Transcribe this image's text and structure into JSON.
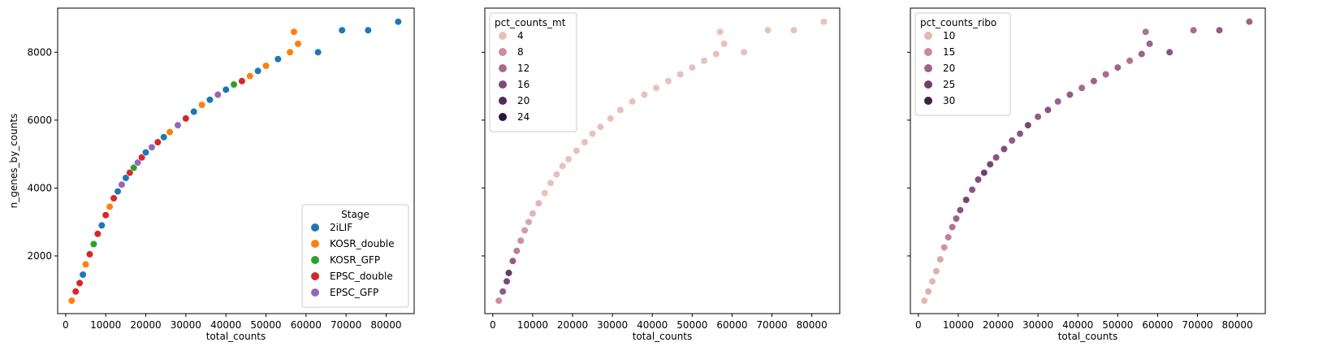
{
  "chart_data": [
    {
      "type": "scatter",
      "xlabel": "total_counts",
      "ylabel": "n_genes_by_counts",
      "xlim": [
        -2000,
        87000
      ],
      "ylim": [
        300,
        9300
      ],
      "xticks": [
        0,
        10000,
        20000,
        30000,
        40000,
        50000,
        60000,
        70000,
        80000
      ],
      "yticks": [
        2000,
        4000,
        6000,
        8000
      ],
      "hue": "Stage",
      "legend": {
        "title": "Stage",
        "placement": "lower right",
        "entries": [
          {
            "label": "2iLIF",
            "color": "#1f77b4"
          },
          {
            "label": "KOSR_double",
            "color": "#ff7f0e"
          },
          {
            "label": "KOSR_GFP",
            "color": "#2ca02c"
          },
          {
            "label": "EPSC_double",
            "color": "#d62728"
          },
          {
            "label": "EPSC_GFP",
            "color": "#9467bd"
          }
        ]
      },
      "points": [
        {
          "x": 1500,
          "y": 680,
          "c": "KOSR_double"
        },
        {
          "x": 2500,
          "y": 950,
          "c": "EPSC_double"
        },
        {
          "x": 3500,
          "y": 1200,
          "c": "EPSC_double"
        },
        {
          "x": 4300,
          "y": 1450,
          "c": "2iLIF"
        },
        {
          "x": 5000,
          "y": 1750,
          "c": "KOSR_double"
        },
        {
          "x": 6000,
          "y": 2050,
          "c": "EPSC_double"
        },
        {
          "x": 7000,
          "y": 2350,
          "c": "KOSR_GFP"
        },
        {
          "x": 8000,
          "y": 2650,
          "c": "EPSC_double"
        },
        {
          "x": 9000,
          "y": 2900,
          "c": "2iLIF"
        },
        {
          "x": 10000,
          "y": 3200,
          "c": "EPSC_double"
        },
        {
          "x": 11000,
          "y": 3450,
          "c": "KOSR_double"
        },
        {
          "x": 12000,
          "y": 3700,
          "c": "EPSC_double"
        },
        {
          "x": 13000,
          "y": 3900,
          "c": "2iLIF"
        },
        {
          "x": 14000,
          "y": 4100,
          "c": "EPSC_GFP"
        },
        {
          "x": 15000,
          "y": 4300,
          "c": "2iLIF"
        },
        {
          "x": 16000,
          "y": 4450,
          "c": "EPSC_double"
        },
        {
          "x": 17000,
          "y": 4600,
          "c": "KOSR_GFP"
        },
        {
          "x": 18000,
          "y": 4750,
          "c": "EPSC_GFP"
        },
        {
          "x": 19000,
          "y": 4900,
          "c": "EPSC_double"
        },
        {
          "x": 20000,
          "y": 5050,
          "c": "2iLIF"
        },
        {
          "x": 21500,
          "y": 5200,
          "c": "EPSC_GFP"
        },
        {
          "x": 23000,
          "y": 5350,
          "c": "EPSC_double"
        },
        {
          "x": 24500,
          "y": 5500,
          "c": "2iLIF"
        },
        {
          "x": 26000,
          "y": 5650,
          "c": "KOSR_double"
        },
        {
          "x": 28000,
          "y": 5850,
          "c": "EPSC_GFP"
        },
        {
          "x": 30000,
          "y": 6050,
          "c": "EPSC_double"
        },
        {
          "x": 32000,
          "y": 6250,
          "c": "2iLIF"
        },
        {
          "x": 34000,
          "y": 6450,
          "c": "KOSR_double"
        },
        {
          "x": 36000,
          "y": 6600,
          "c": "2iLIF"
        },
        {
          "x": 38000,
          "y": 6750,
          "c": "EPSC_GFP"
        },
        {
          "x": 40000,
          "y": 6900,
          "c": "2iLIF"
        },
        {
          "x": 42000,
          "y": 7050,
          "c": "KOSR_GFP"
        },
        {
          "x": 44000,
          "y": 7150,
          "c": "EPSC_double"
        },
        {
          "x": 46000,
          "y": 7300,
          "c": "KOSR_double"
        },
        {
          "x": 48000,
          "y": 7450,
          "c": "2iLIF"
        },
        {
          "x": 50000,
          "y": 7600,
          "c": "KOSR_double"
        },
        {
          "x": 53000,
          "y": 7800,
          "c": "2iLIF"
        },
        {
          "x": 56000,
          "y": 8000,
          "c": "KOSR_double"
        },
        {
          "x": 57000,
          "y": 8600,
          "c": "KOSR_double"
        },
        {
          "x": 58000,
          "y": 8250,
          "c": "KOSR_double"
        },
        {
          "x": 63000,
          "y": 8000,
          "c": "2iLIF"
        },
        {
          "x": 69000,
          "y": 8650,
          "c": "2iLIF"
        },
        {
          "x": 75500,
          "y": 8650,
          "c": "2iLIF"
        },
        {
          "x": 83000,
          "y": 8900,
          "c": "2iLIF"
        }
      ]
    },
    {
      "type": "scatter",
      "xlabel": "total_counts",
      "ylabel": "",
      "xlim": [
        -2000,
        87000
      ],
      "ylim": [
        300,
        9300
      ],
      "xticks": [
        0,
        10000,
        20000,
        30000,
        40000,
        50000,
        60000,
        70000,
        80000
      ],
      "yticks": [
        2000,
        4000,
        6000,
        8000
      ],
      "hue": "pct_counts_mt",
      "legend": {
        "title": "pct_counts_mt",
        "placement": "upper left",
        "entries": [
          {
            "label": "4",
            "color": "#e8c1b9"
          },
          {
            "label": "8",
            "color": "#cf8d9f"
          },
          {
            "label": "12",
            "color": "#a96b8c"
          },
          {
            "label": "16",
            "color": "#7b4a78"
          },
          {
            "label": "20",
            "color": "#4d2c59"
          },
          {
            "label": "24",
            "color": "#2a1537"
          }
        ]
      },
      "points": [
        {
          "x": 1500,
          "y": 680,
          "v": 8
        },
        {
          "x": 2500,
          "y": 950,
          "v": 14
        },
        {
          "x": 3500,
          "y": 1250,
          "v": 16
        },
        {
          "x": 4000,
          "y": 1500,
          "v": 18
        },
        {
          "x": 5000,
          "y": 1850,
          "v": 14
        },
        {
          "x": 6000,
          "y": 2150,
          "v": 10
        },
        {
          "x": 7000,
          "y": 2450,
          "v": 8
        },
        {
          "x": 8000,
          "y": 2750,
          "v": 7
        },
        {
          "x": 9000,
          "y": 3000,
          "v": 6
        },
        {
          "x": 10000,
          "y": 3250,
          "v": 5
        },
        {
          "x": 11500,
          "y": 3550,
          "v": 5
        },
        {
          "x": 13000,
          "y": 3850,
          "v": 4
        },
        {
          "x": 14500,
          "y": 4150,
          "v": 4
        },
        {
          "x": 16000,
          "y": 4400,
          "v": 4
        },
        {
          "x": 17500,
          "y": 4650,
          "v": 4
        },
        {
          "x": 19000,
          "y": 4850,
          "v": 4
        },
        {
          "x": 21000,
          "y": 5100,
          "v": 3
        },
        {
          "x": 23000,
          "y": 5350,
          "v": 3
        },
        {
          "x": 25000,
          "y": 5600,
          "v": 3
        },
        {
          "x": 27000,
          "y": 5800,
          "v": 3
        },
        {
          "x": 29500,
          "y": 6050,
          "v": 3
        },
        {
          "x": 32000,
          "y": 6300,
          "v": 3
        },
        {
          "x": 35000,
          "y": 6550,
          "v": 3
        },
        {
          "x": 38000,
          "y": 6750,
          "v": 3
        },
        {
          "x": 41000,
          "y": 6950,
          "v": 3
        },
        {
          "x": 44000,
          "y": 7150,
          "v": 3
        },
        {
          "x": 47000,
          "y": 7350,
          "v": 3
        },
        {
          "x": 50000,
          "y": 7550,
          "v": 3
        },
        {
          "x": 53000,
          "y": 7750,
          "v": 3
        },
        {
          "x": 56000,
          "y": 7950,
          "v": 3
        },
        {
          "x": 57000,
          "y": 8600,
          "v": 3
        },
        {
          "x": 58000,
          "y": 8250,
          "v": 3
        },
        {
          "x": 63000,
          "y": 8000,
          "v": 3
        },
        {
          "x": 69000,
          "y": 8650,
          "v": 3
        },
        {
          "x": 75500,
          "y": 8650,
          "v": 3
        },
        {
          "x": 83000,
          "y": 8900,
          "v": 3
        }
      ]
    },
    {
      "type": "scatter",
      "xlabel": "total_counts",
      "ylabel": "",
      "xlim": [
        -2000,
        87000
      ],
      "ylim": [
        300,
        9300
      ],
      "xticks": [
        0,
        10000,
        20000,
        30000,
        40000,
        50000,
        60000,
        70000,
        80000
      ],
      "yticks": [
        2000,
        4000,
        6000,
        8000
      ],
      "hue": "pct_counts_ribo",
      "legend": {
        "title": "pct_counts_ribo",
        "placement": "upper left",
        "entries": [
          {
            "label": "10",
            "color": "#e4b7b0"
          },
          {
            "label": "15",
            "color": "#c98a9f"
          },
          {
            "label": "20",
            "color": "#9d6389"
          },
          {
            "label": "25",
            "color": "#6e3f6e"
          },
          {
            "label": "30",
            "color": "#3e2348"
          }
        ]
      },
      "points": [
        {
          "x": 1500,
          "y": 680,
          "v": 10
        },
        {
          "x": 2500,
          "y": 950,
          "v": 11
        },
        {
          "x": 3500,
          "y": 1250,
          "v": 10
        },
        {
          "x": 4500,
          "y": 1550,
          "v": 11
        },
        {
          "x": 5500,
          "y": 1900,
          "v": 12
        },
        {
          "x": 6500,
          "y": 2250,
          "v": 14
        },
        {
          "x": 7500,
          "y": 2550,
          "v": 16
        },
        {
          "x": 8500,
          "y": 2850,
          "v": 18
        },
        {
          "x": 9500,
          "y": 3100,
          "v": 20
        },
        {
          "x": 10500,
          "y": 3350,
          "v": 22
        },
        {
          "x": 12000,
          "y": 3650,
          "v": 24
        },
        {
          "x": 13500,
          "y": 3950,
          "v": 22
        },
        {
          "x": 15000,
          "y": 4250,
          "v": 23
        },
        {
          "x": 16500,
          "y": 4450,
          "v": 25
        },
        {
          "x": 18000,
          "y": 4700,
          "v": 24
        },
        {
          "x": 19500,
          "y": 4900,
          "v": 22
        },
        {
          "x": 21500,
          "y": 5150,
          "v": 23
        },
        {
          "x": 23500,
          "y": 5400,
          "v": 21
        },
        {
          "x": 25500,
          "y": 5600,
          "v": 22
        },
        {
          "x": 27500,
          "y": 5850,
          "v": 24
        },
        {
          "x": 30000,
          "y": 6100,
          "v": 21
        },
        {
          "x": 32500,
          "y": 6300,
          "v": 22
        },
        {
          "x": 35000,
          "y": 6550,
          "v": 20
        },
        {
          "x": 38000,
          "y": 6750,
          "v": 21
        },
        {
          "x": 41000,
          "y": 6950,
          "v": 19
        },
        {
          "x": 44000,
          "y": 7150,
          "v": 20
        },
        {
          "x": 47000,
          "y": 7350,
          "v": 19
        },
        {
          "x": 50000,
          "y": 7550,
          "v": 20
        },
        {
          "x": 53000,
          "y": 7750,
          "v": 18
        },
        {
          "x": 56000,
          "y": 7950,
          "v": 20
        },
        {
          "x": 57000,
          "y": 8600,
          "v": 18
        },
        {
          "x": 58000,
          "y": 8250,
          "v": 20
        },
        {
          "x": 63000,
          "y": 8000,
          "v": 22
        },
        {
          "x": 69000,
          "y": 8650,
          "v": 19
        },
        {
          "x": 75500,
          "y": 8650,
          "v": 21
        },
        {
          "x": 83000,
          "y": 8900,
          "v": 20
        }
      ]
    }
  ]
}
